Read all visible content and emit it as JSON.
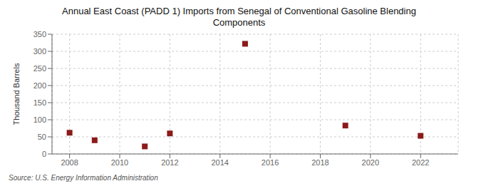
{
  "chart_data": {
    "type": "scatter",
    "title": "Annual East Coast (PADD 1) Imports from Senegal of Conventional Gasoline Blending\nComponents",
    "ylabel": "Thousand Barrels",
    "source": "Source: U.S. Energy Information Administration",
    "x": [
      2008,
      2009,
      2011,
      2012,
      2015,
      2019,
      2022
    ],
    "values": [
      62,
      40,
      22,
      60,
      322,
      83,
      53
    ],
    "color": "#8b1a1a",
    "marker": "square",
    "xlim": [
      2007.3,
      2023.5
    ],
    "xticks": [
      2008,
      2010,
      2012,
      2014,
      2016,
      2018,
      2020,
      2022
    ],
    "ylim": [
      0,
      350
    ],
    "yticks": [
      0,
      50,
      100,
      150,
      200,
      250,
      300,
      350
    ],
    "grid": true
  }
}
